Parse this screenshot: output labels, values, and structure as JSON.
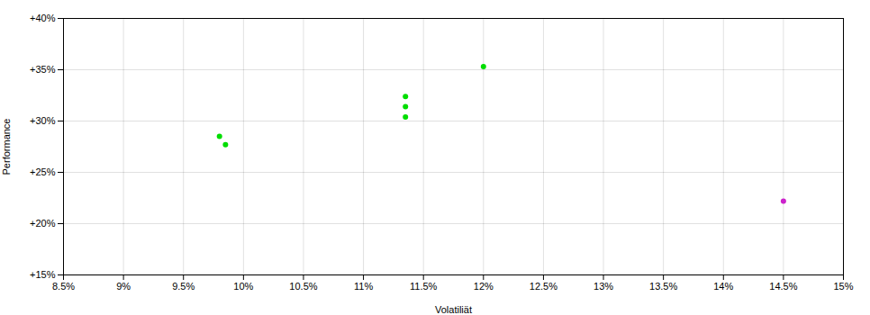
{
  "chart_data": {
    "type": "scatter",
    "xlabel": "Volatiliät",
    "ylabel": "Performance",
    "xlim": [
      0.085,
      0.15
    ],
    "ylim": [
      0.15,
      0.4
    ],
    "xticks": [
      {
        "value": 0.085,
        "label": "8.5%"
      },
      {
        "value": 0.09,
        "label": "9%"
      },
      {
        "value": 0.095,
        "label": "9.5%"
      },
      {
        "value": 0.1,
        "label": "10%"
      },
      {
        "value": 0.105,
        "label": "10.5%"
      },
      {
        "value": 0.11,
        "label": "11%"
      },
      {
        "value": 0.115,
        "label": "11.5%"
      },
      {
        "value": 0.12,
        "label": "12%"
      },
      {
        "value": 0.125,
        "label": "12.5%"
      },
      {
        "value": 0.13,
        "label": "13%"
      },
      {
        "value": 0.135,
        "label": "13.5%"
      },
      {
        "value": 0.14,
        "label": "14%"
      },
      {
        "value": 0.145,
        "label": "14.5%"
      },
      {
        "value": 0.15,
        "label": "15%"
      }
    ],
    "yticks": [
      {
        "value": 0.15,
        "label": "+15%"
      },
      {
        "value": 0.2,
        "label": "+20%"
      },
      {
        "value": 0.25,
        "label": "+25%"
      },
      {
        "value": 0.3,
        "label": "+30%"
      },
      {
        "value": 0.35,
        "label": "+35%"
      },
      {
        "value": 0.4,
        "label": "+40%"
      }
    ],
    "grid": true,
    "series": [
      {
        "color": "#00dd00",
        "x": [
          0.098,
          0.0985,
          0.1135,
          0.1135,
          0.1135,
          0.12
        ],
        "values": [
          0.285,
          0.277,
          0.324,
          0.314,
          0.304,
          0.353
        ]
      },
      {
        "color": "#cc22cc",
        "x": [
          0.145
        ],
        "values": [
          0.222
        ]
      }
    ]
  }
}
